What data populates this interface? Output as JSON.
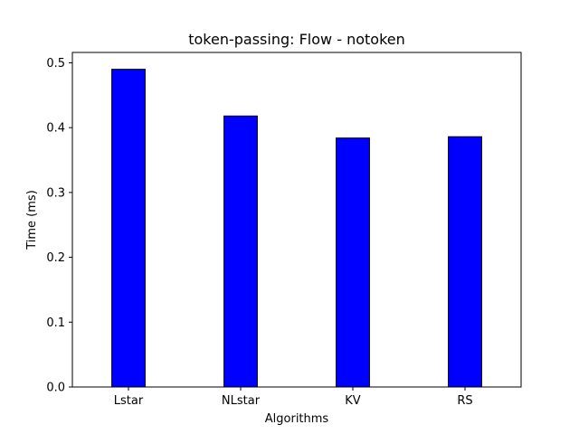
{
  "chart_data": {
    "type": "bar",
    "title": "token-passing: Flow - notoken",
    "xlabel": "Algorithms",
    "ylabel": "Time (ms)",
    "categories": [
      "Lstar",
      "NLstar",
      "KV",
      "RS"
    ],
    "values": [
      0.49,
      0.418,
      0.384,
      0.386
    ],
    "ylim": [
      0,
      0.516
    ],
    "yticks": [
      0.0,
      0.1,
      0.2,
      0.3,
      0.4,
      0.5
    ],
    "ytick_labels": [
      "0.0",
      "0.1",
      "0.2",
      "0.3",
      "0.4",
      "0.5"
    ],
    "grid": false,
    "bar_color": "#0000ff",
    "edge_color": "#000000"
  }
}
